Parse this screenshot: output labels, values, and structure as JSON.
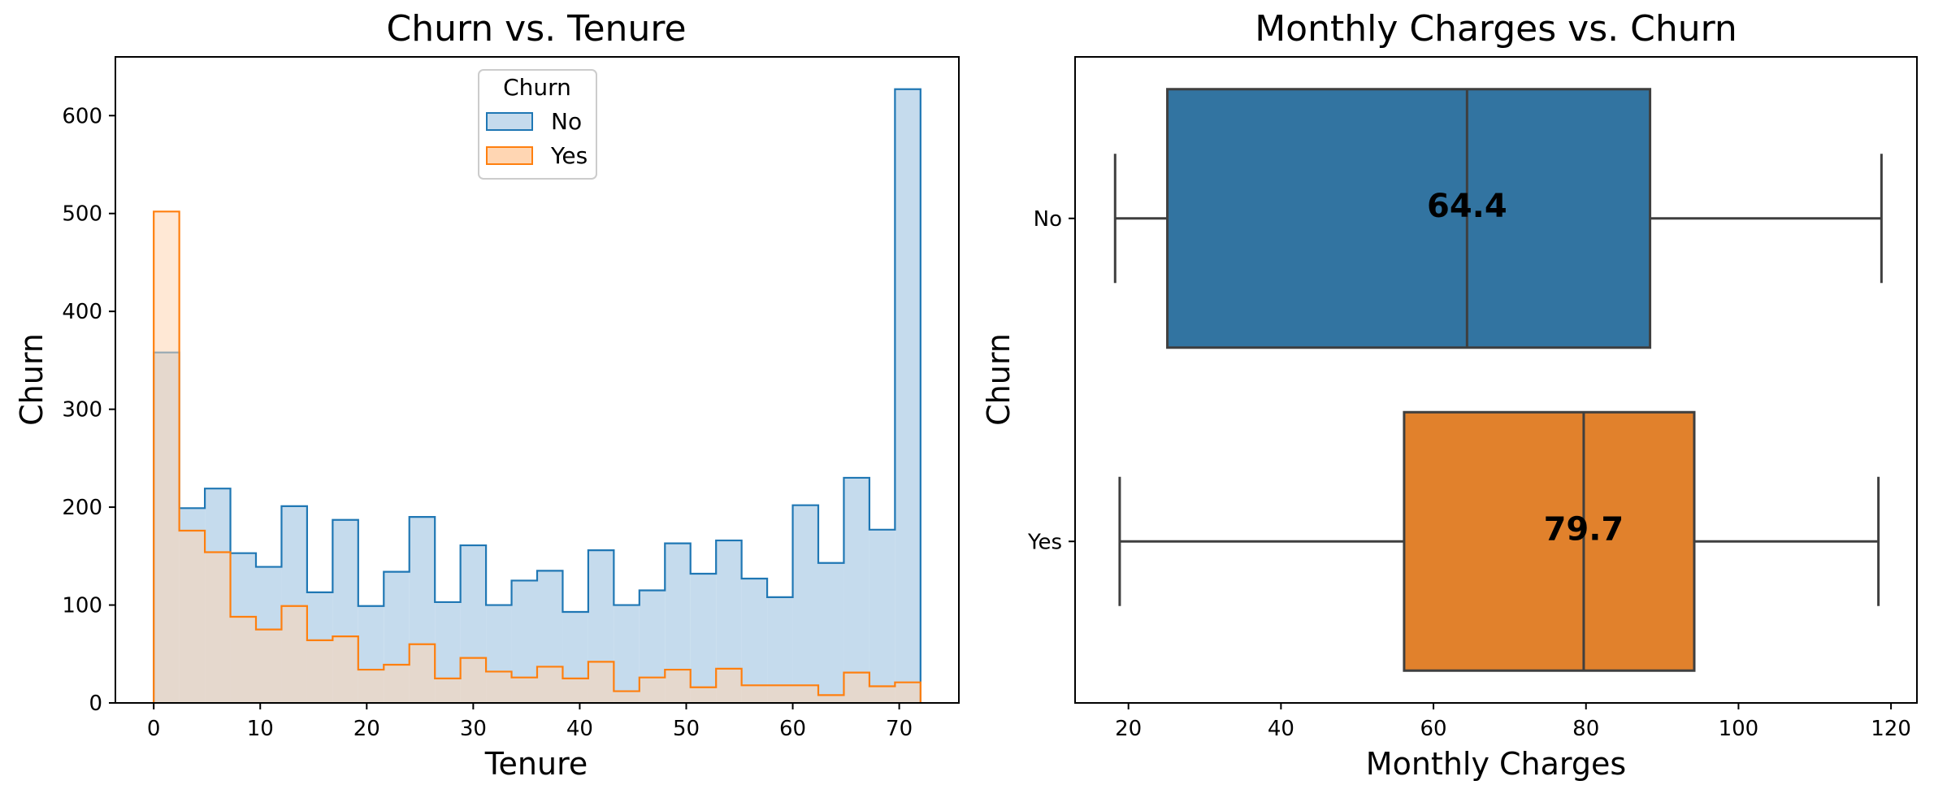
{
  "chart_data": [
    {
      "type": "histogram",
      "title": "Churn vs. Tenure",
      "xlabel": "Tenure",
      "ylabel": "Churn",
      "xlim": [
        -3.6,
        75.6
      ],
      "ylim": [
        0,
        660
      ],
      "xticks": [
        0,
        10,
        20,
        30,
        40,
        50,
        60,
        70
      ],
      "yticks": [
        0,
        100,
        200,
        300,
        400,
        500,
        600
      ],
      "bin_width": 2.4,
      "bin_start": 0,
      "legend": {
        "title": "Churn",
        "placement": "top-center"
      },
      "series": [
        {
          "name": "No",
          "color": "#1f77b4",
          "fill": "#c5dbed",
          "values": [
            358,
            199,
            219,
            153,
            139,
            201,
            113,
            187,
            99,
            134,
            190,
            103,
            161,
            100,
            125,
            135,
            93,
            156,
            100,
            115,
            163,
            132,
            166,
            127,
            108,
            202,
            143,
            230,
            177,
            627
          ]
        },
        {
          "name": "Yes",
          "color": "#ff7f0e",
          "fill": "#ffd6b3",
          "values": [
            502,
            176,
            154,
            88,
            75,
            99,
            64,
            68,
            34,
            39,
            60,
            25,
            46,
            32,
            26,
            37,
            25,
            42,
            12,
            26,
            34,
            16,
            35,
            18,
            18,
            18,
            8,
            31,
            17,
            21
          ]
        }
      ]
    },
    {
      "type": "box",
      "orientation": "horizontal",
      "title": "Monthly Charges vs. Churn",
      "xlabel": "Monthly Charges",
      "ylabel": "Churn",
      "xlim": [
        13.0,
        123.4
      ],
      "xticks": [
        20,
        40,
        60,
        80,
        100,
        120
      ],
      "categories": [
        "No",
        "Yes"
      ],
      "boxes": [
        {
          "category": "No",
          "color": "#3274a1",
          "min": 18.25,
          "q1": 25.1,
          "median": 64.4,
          "q3": 88.4,
          "max": 118.75,
          "median_label": "64.4"
        },
        {
          "category": "Yes",
          "color": "#e1812c",
          "min": 18.85,
          "q1": 56.15,
          "median": 79.7,
          "q3": 94.2,
          "max": 118.35,
          "median_label": "79.7"
        }
      ]
    }
  ]
}
